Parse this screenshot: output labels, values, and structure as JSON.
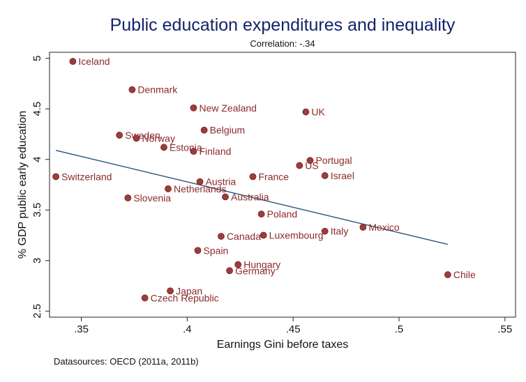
{
  "chart_data": {
    "type": "scatter",
    "title": "Public education expenditures and inequality",
    "subtitle": "Correlation: -.34",
    "xlabel": "Earnings Gini before taxes",
    "ylabel": "% GDP public early education",
    "note": "Datasources: OECD (2011a, 2011b)",
    "xlim": [
      0.335,
      0.555
    ],
    "ylim": [
      2.44,
      5.06
    ],
    "xticks": [
      {
        "value": 0.35,
        "label": ".35"
      },
      {
        "value": 0.4,
        "label": ".4"
      },
      {
        "value": 0.45,
        "label": ".45"
      },
      {
        "value": 0.5,
        "label": ".5"
      },
      {
        "value": 0.55,
        "label": ".55"
      }
    ],
    "yticks": [
      {
        "value": 2.5,
        "label": "2.5"
      },
      {
        "value": 3,
        "label": "3"
      },
      {
        "value": 3.5,
        "label": "3.5"
      },
      {
        "value": 4,
        "label": "4"
      },
      {
        "value": 4.5,
        "label": "4.5"
      },
      {
        "value": 5,
        "label": "5"
      }
    ],
    "grid": false,
    "colors": {
      "points": "#a03b3b",
      "labels": "#8c2a2a",
      "fit_line": "#1f4e79",
      "title": "#14236a"
    },
    "fit_line": {
      "x": [
        0.338,
        0.523
      ],
      "y": [
        4.09,
        3.16
      ]
    },
    "points": [
      {
        "label": "Iceland",
        "x": 0.346,
        "y": 4.97
      },
      {
        "label": "Denmark",
        "x": 0.374,
        "y": 4.69
      },
      {
        "label": "New Zealand",
        "x": 0.403,
        "y": 4.51
      },
      {
        "label": "UK",
        "x": 0.456,
        "y": 4.47
      },
      {
        "label": "Belgium",
        "x": 0.408,
        "y": 4.29
      },
      {
        "label": "Sweden",
        "x": 0.368,
        "y": 4.24
      },
      {
        "label": "Norway",
        "x": 0.376,
        "y": 4.21
      },
      {
        "label": "Estonia",
        "x": 0.389,
        "y": 4.12
      },
      {
        "label": "Finland",
        "x": 0.403,
        "y": 4.08
      },
      {
        "label": "Portugal",
        "x": 0.458,
        "y": 3.99
      },
      {
        "label": "US",
        "x": 0.453,
        "y": 3.94
      },
      {
        "label": "Switzerland",
        "x": 0.338,
        "y": 3.83
      },
      {
        "label": "France",
        "x": 0.431,
        "y": 3.83
      },
      {
        "label": "Israel",
        "x": 0.465,
        "y": 3.84
      },
      {
        "label": "Austria",
        "x": 0.406,
        "y": 3.78
      },
      {
        "label": "Netherlands",
        "x": 0.391,
        "y": 3.71
      },
      {
        "label": "Slovenia",
        "x": 0.372,
        "y": 3.62
      },
      {
        "label": "Australia",
        "x": 0.418,
        "y": 3.63
      },
      {
        "label": "Poland",
        "x": 0.435,
        "y": 3.46
      },
      {
        "label": "Mexico",
        "x": 0.483,
        "y": 3.33
      },
      {
        "label": "Italy",
        "x": 0.465,
        "y": 3.29
      },
      {
        "label": "Canada",
        "x": 0.416,
        "y": 3.24
      },
      {
        "label": "Luxembourg",
        "x": 0.436,
        "y": 3.25
      },
      {
        "label": "Spain",
        "x": 0.405,
        "y": 3.1
      },
      {
        "label": "Hungary",
        "x": 0.424,
        "y": 2.96
      },
      {
        "label": "Germany",
        "x": 0.42,
        "y": 2.9
      },
      {
        "label": "Chile",
        "x": 0.523,
        "y": 2.86
      },
      {
        "label": "Japan",
        "x": 0.392,
        "y": 2.7
      },
      {
        "label": "Czech Republic",
        "x": 0.38,
        "y": 2.63
      }
    ]
  }
}
